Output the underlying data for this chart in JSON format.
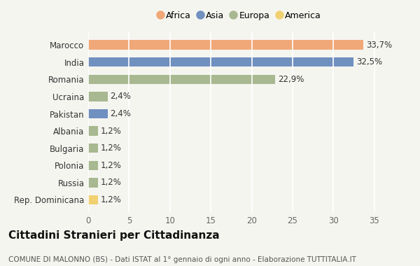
{
  "categories": [
    "Marocco",
    "India",
    "Romania",
    "Ucraina",
    "Pakistan",
    "Albania",
    "Bulgaria",
    "Polonia",
    "Russia",
    "Rep. Dominicana"
  ],
  "values": [
    33.7,
    32.5,
    22.9,
    2.4,
    2.4,
    1.2,
    1.2,
    1.2,
    1.2,
    1.2
  ],
  "labels": [
    "33,7%",
    "32,5%",
    "22,9%",
    "2,4%",
    "2,4%",
    "1,2%",
    "1,2%",
    "1,2%",
    "1,2%",
    "1,2%"
  ],
  "colors": [
    "#f0a878",
    "#7090c0",
    "#a8b890",
    "#a8b890",
    "#7090c0",
    "#a8b890",
    "#a8b890",
    "#a8b890",
    "#a8b890",
    "#f0d070"
  ],
  "continents": [
    "Africa",
    "Asia",
    "Europa",
    "Europa",
    "Asia",
    "Europa",
    "Europa",
    "Europa",
    "Europa",
    "America"
  ],
  "legend_labels": [
    "Africa",
    "Asia",
    "Europa",
    "America"
  ],
  "legend_colors": [
    "#f0a878",
    "#7090c0",
    "#a8b890",
    "#f0d070"
  ],
  "title": "Cittadini Stranieri per Cittadinanza",
  "subtitle": "COMUNE DI MALONNO (BS) - Dati ISTAT al 1° gennaio di ogni anno - Elaborazione TUTTITALIA.IT",
  "xlim": [
    0,
    37
  ],
  "xticks": [
    0,
    5,
    10,
    15,
    20,
    25,
    30,
    35
  ],
  "background_color": "#f5f5f0",
  "bar_height": 0.55,
  "grid_color": "#ffffff",
  "title_fontsize": 11,
  "subtitle_fontsize": 7.5,
  "label_fontsize": 8.5,
  "tick_fontsize": 8.5
}
